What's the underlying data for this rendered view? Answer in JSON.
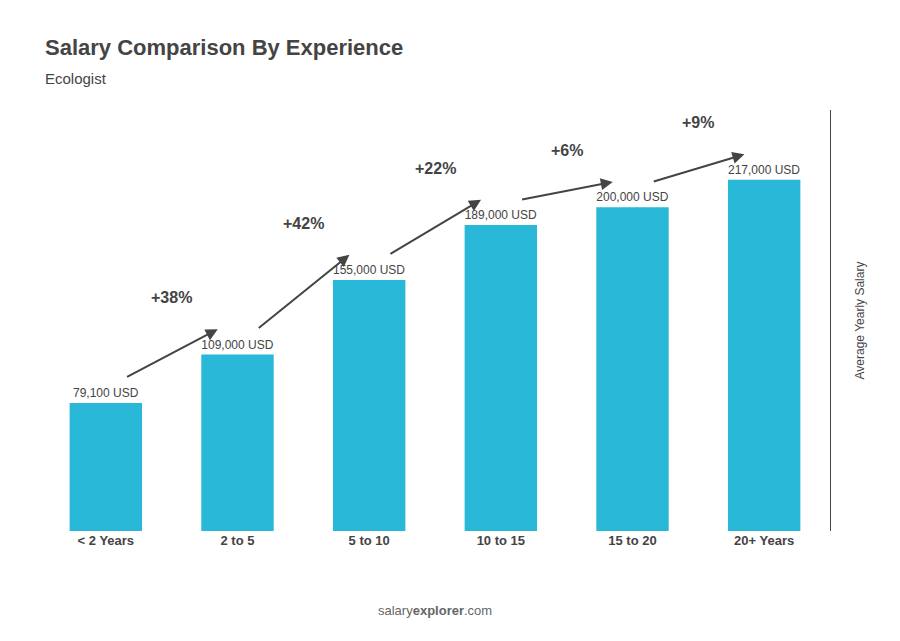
{
  "chart_data": {
    "type": "bar",
    "title": "Salary Comparison By Experience",
    "subtitle": "Ecologist",
    "ylabel": "Average Yearly Salary",
    "categories": [
      "< 2 Years",
      "2 to 5",
      "5 to 10",
      "10 to 15",
      "15 to 20",
      "20+ Years"
    ],
    "values": [
      79100,
      109000,
      155000,
      189000,
      200000,
      217000
    ],
    "value_labels": [
      "79,100 USD",
      "109,000 USD",
      "155,000 USD",
      "189,000 USD",
      "200,000 USD",
      "217,000 USD"
    ],
    "data_labels": true,
    "color": "#29b8d8",
    "ylim": [
      0,
      260000
    ],
    "grid": false,
    "tick_labels": "x",
    "annotations": [
      "+38%",
      "+42%",
      "+22%",
      "+6%",
      "+9%"
    ],
    "footer": [
      "salary",
      "explorer",
      ".com"
    ]
  }
}
